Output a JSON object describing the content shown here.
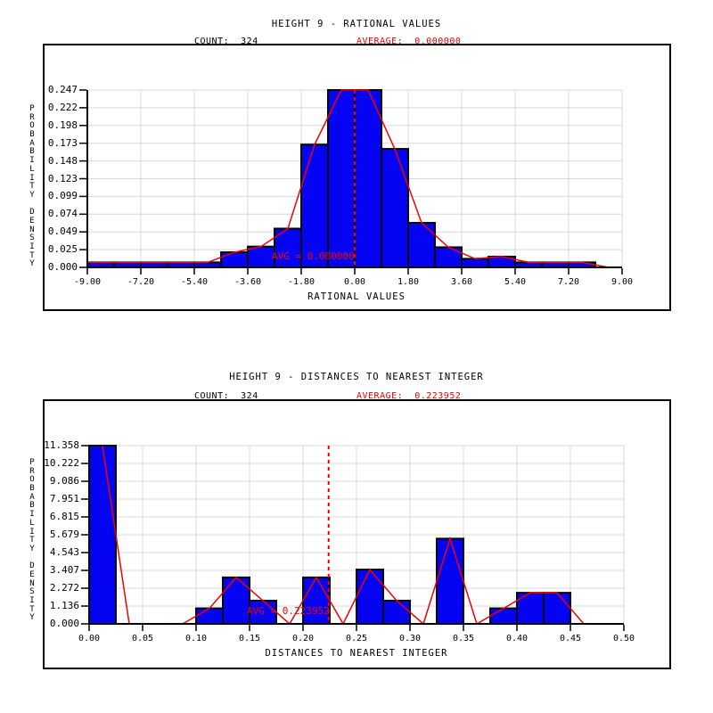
{
  "colors": {
    "bar_fill": "#0404f2",
    "bar_outline": "#000000",
    "curve_line": "#f00000",
    "average_line": "#f00000",
    "annotation_text": "#f00000",
    "grid": "#d8d8d8",
    "axis": "#000000",
    "background": "#ffffff",
    "text": "#000000"
  },
  "chart_data": [
    {
      "type": "bar",
      "title": "HEIGHT 9 - RATIONAL VALUES",
      "count": 324,
      "count_label": "COUNT:  324",
      "average_label": "AVERAGE:  0.000000",
      "avg_annotation": "AVG = 0.000000",
      "xlabel": "RATIONAL VALUES",
      "ylabel": "PROBABILITY DENSITY",
      "xlim": [
        -9,
        9
      ],
      "ylim": [
        0,
        0.247
      ],
      "x_ticks": [
        "-9.00",
        "-7.20",
        "-5.40",
        "-3.60",
        "-1.80",
        "0.00",
        "1.80",
        "3.60",
        "5.40",
        "7.20",
        "9.00"
      ],
      "y_ticks": [
        "0.247",
        "0.222",
        "0.198",
        "0.173",
        "0.148",
        "0.123",
        "0.099",
        "0.074",
        "0.049",
        "0.025",
        "0.000"
      ],
      "bin_start": -9,
      "bin_width": 0.9,
      "values": [
        0.007,
        0.007,
        0.007,
        0.007,
        0.007,
        0.021,
        0.029,
        0.054,
        0.171,
        0.247,
        0.247,
        0.165,
        0.062,
        0.028,
        0.012,
        0.015,
        0.007,
        0.007,
        0.007,
        0
      ],
      "average": 0.0,
      "curve": "frequency_polygon",
      "curve_starts_at_axis": true,
      "grid": true,
      "legend": "none"
    },
    {
      "type": "bar",
      "title": "HEIGHT 9 - DISTANCES TO NEAREST INTEGER",
      "count": 324,
      "count_label": "COUNT:  324",
      "average_label": "AVERAGE:  0.223952",
      "avg_annotation": "AVG = 0.223952",
      "xlabel": "DISTANCES TO NEAREST INTEGER",
      "ylabel": "PROBABILITY DENSITY",
      "xlim": [
        0,
        0.5
      ],
      "ylim": [
        0,
        11.358
      ],
      "x_ticks": [
        "0.00",
        "0.05",
        "0.10",
        "0.15",
        "0.20",
        "0.25",
        "0.30",
        "0.35",
        "0.40",
        "0.45",
        "0.50"
      ],
      "y_ticks": [
        "11.358",
        "10.222",
        "9.086",
        "7.951",
        "6.815",
        "5.679",
        "4.543",
        "3.407",
        "2.272",
        "1.136",
        "0.000"
      ],
      "bin_start": 0,
      "bin_width": 0.025,
      "values": [
        11.358,
        0,
        0,
        0,
        0.99,
        2.96,
        1.48,
        0,
        2.96,
        0,
        3.46,
        1.48,
        0,
        5.43,
        0,
        0.99,
        1.98,
        1.98,
        0,
        0
      ],
      "average": 0.223952,
      "curve": "frequency_polygon",
      "curve_starts_at_axis": false,
      "grid": true,
      "legend": "none"
    }
  ]
}
